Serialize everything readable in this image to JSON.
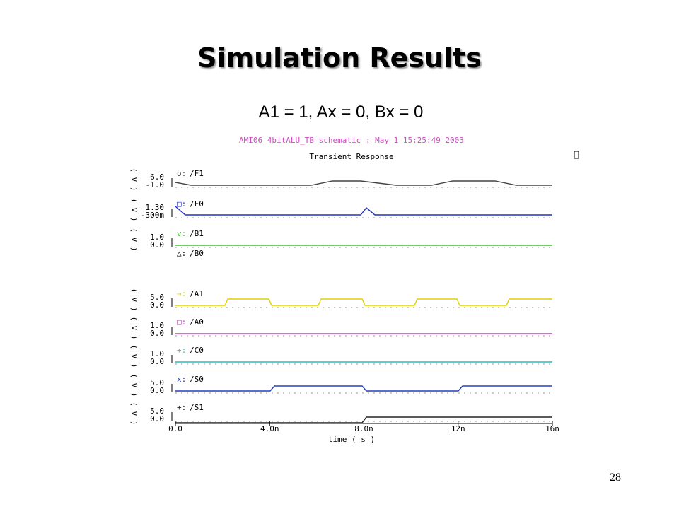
{
  "title": "Simulation Results",
  "subtitle": "A1 = 1, Ax = 0, Bx = 0",
  "panel": {
    "header": "AMI06 4bitALU_TB schematic : May  1 15:25:49 2003",
    "heading": "Transient Response",
    "signals": [
      {
        "symbol": "o:",
        "name": "/F1",
        "unit": "( V )",
        "top": "6.0",
        "bottom": "-1.0"
      },
      {
        "symbol": "□:",
        "name": "/F0",
        "unit": "( V )",
        "top": "1.30",
        "bottom": "-300m"
      },
      {
        "symbol": "v:",
        "name": "/B1",
        "unit": "( V )",
        "top": "1.0",
        "bottom": "0.0"
      },
      {
        "symbol": "△:",
        "name": "/B0"
      },
      {
        "symbol": "→:",
        "name": "/A1",
        "unit": "( V )",
        "top": "5.0",
        "bottom": "0.0"
      },
      {
        "symbol": "□:",
        "name": "/A0",
        "unit": "( V )",
        "top": "1.0",
        "bottom": "0.0"
      },
      {
        "symbol": "+:",
        "name": "/C0",
        "unit": "( V )",
        "top": "1.0",
        "bottom": "0.0"
      },
      {
        "symbol": "x:",
        "name": "/S0",
        "unit": "( V )",
        "top": "5.0",
        "bottom": "0.0"
      },
      {
        "symbol": "+:",
        "name": "/S1",
        "unit": "( V )",
        "top": "5.0",
        "bottom": "0.0"
      }
    ],
    "xticks": [
      "0.0",
      "4.0n",
      "8.0n",
      "12n",
      "16n"
    ],
    "xlabel": "time ( s )"
  },
  "page_number": "28"
}
